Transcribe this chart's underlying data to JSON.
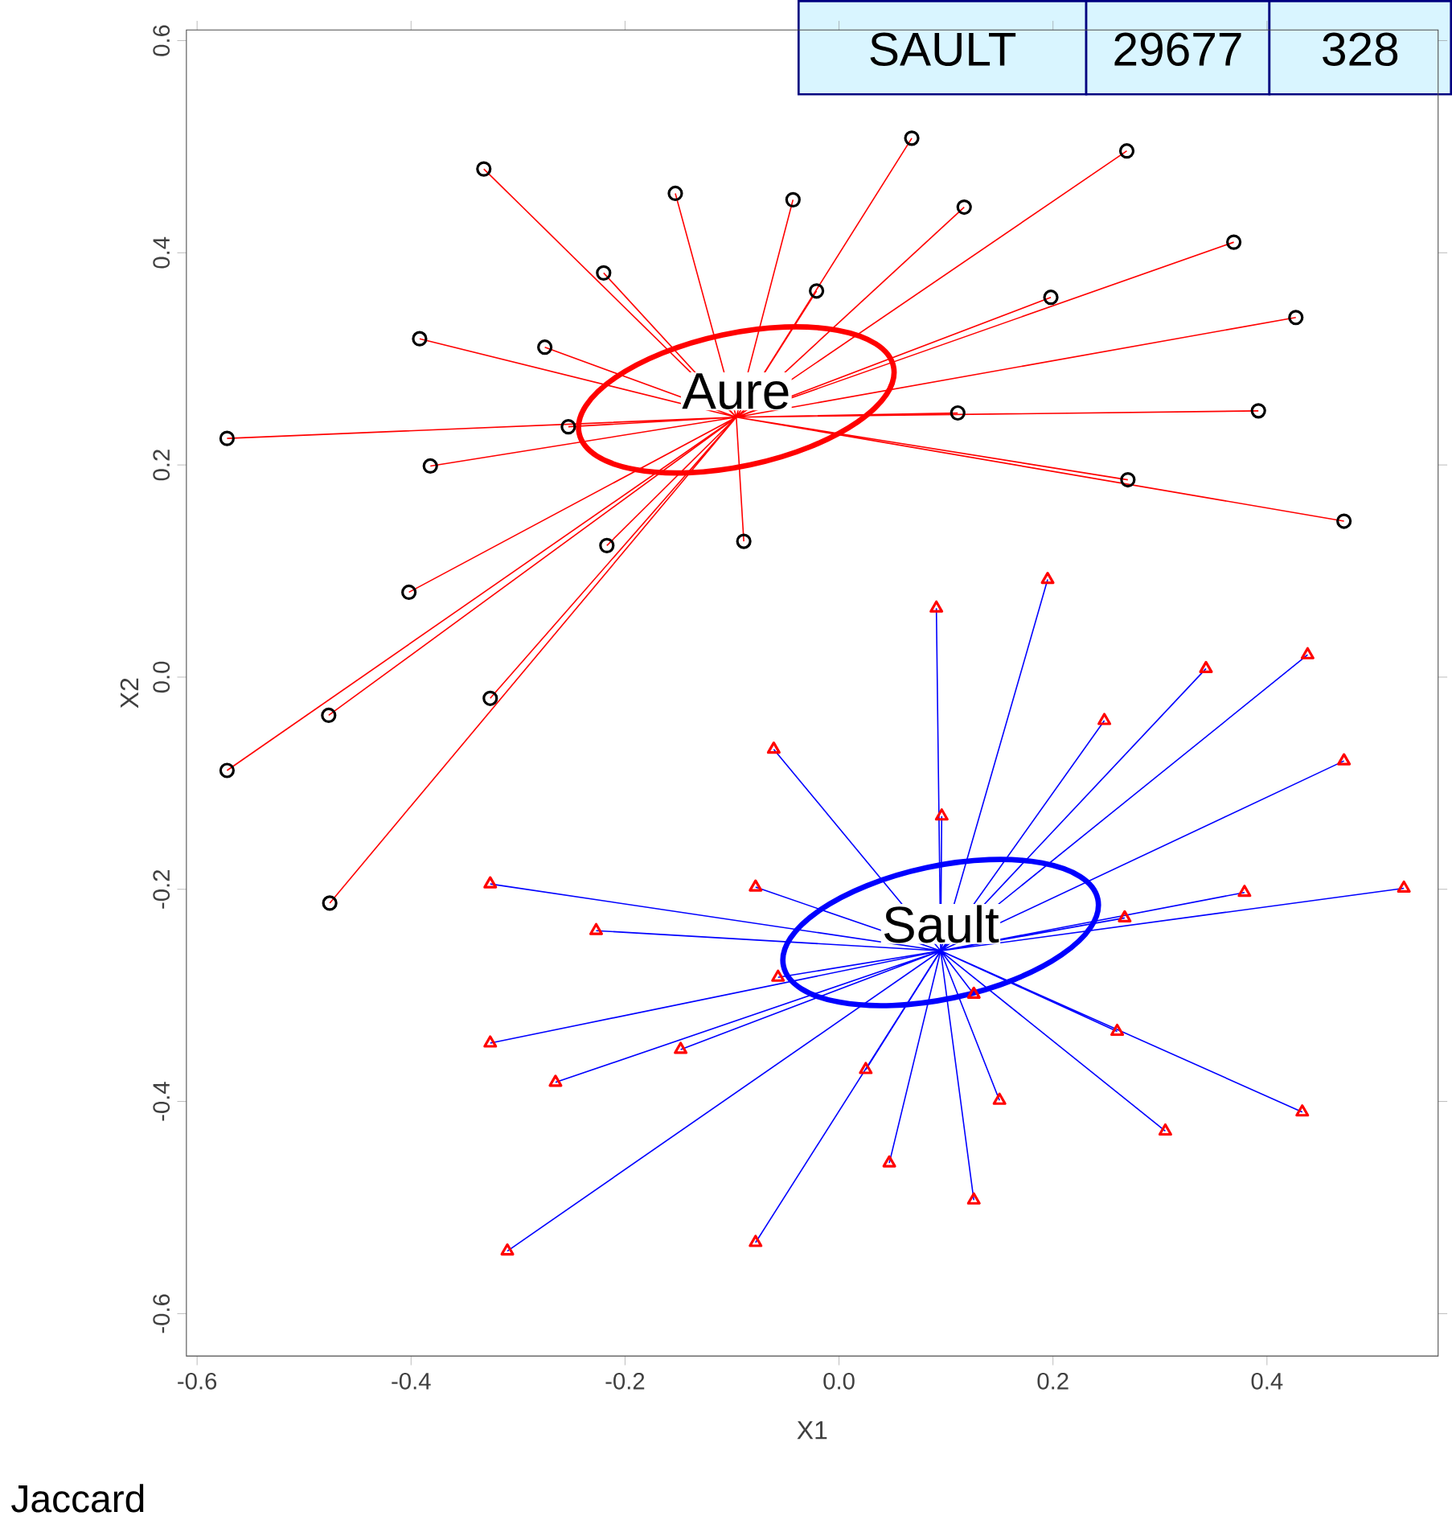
{
  "chart_data": {
    "type": "scatter",
    "xlabel": "X1",
    "ylabel": "X2",
    "xlim": [
      -0.61,
      0.56
    ],
    "ylim": [
      -0.64,
      0.61
    ],
    "xticks": [
      -0.6,
      -0.4,
      -0.2,
      {
        "value": 0,
        "label": "0.0"
      },
      0.2,
      0.4
    ],
    "yticks": [
      -0.6,
      -0.4,
      -0.2,
      {
        "value": 0,
        "label": "0.0"
      },
      0.2,
      0.4,
      0.6
    ],
    "grid": false,
    "series": [
      {
        "type": "line",
        "color": "#ff0000",
        "marker": "none",
        "x": [
          -0.096,
          -0.332,
          null,
          -0.096,
          -0.153,
          null,
          -0.096,
          -0.043,
          null,
          -0.096,
          0.068,
          null,
          -0.096,
          0.269,
          null,
          -0.096,
          0.117,
          null,
          -0.096,
          0.369,
          null,
          -0.096,
          0.198,
          null,
          -0.096,
          0.427,
          null,
          -0.096,
          -0.021,
          null,
          -0.096,
          -0.22,
          null,
          -0.096,
          -0.392,
          null,
          -0.096,
          -0.275,
          null,
          -0.096,
          -0.253,
          null,
          -0.096,
          -0.572,
          null,
          -0.096,
          -0.382,
          null,
          -0.096,
          0.111,
          null,
          -0.096,
          0.392,
          null,
          -0.096,
          0.27,
          null,
          -0.096,
          0.472,
          null,
          -0.096,
          -0.089,
          null,
          -0.096,
          -0.217,
          null,
          -0.096,
          -0.402,
          null,
          -0.096,
          -0.477,
          null,
          -0.096,
          -0.326,
          null,
          -0.096,
          -0.476
        ],
        "values": [
          0.245,
          0.479,
          null,
          0.245,
          0.456,
          null,
          0.245,
          0.45,
          null,
          0.245,
          0.508,
          null,
          0.245,
          0.496,
          null,
          0.245,
          0.443,
          null,
          0.245,
          0.41,
          null,
          0.245,
          0.358,
          null,
          0.245,
          0.339,
          null,
          0.245,
          0.364,
          null,
          0.245,
          0.381,
          null,
          0.245,
          0.319,
          null,
          0.245,
          0.311,
          null,
          0.245,
          0.236,
          null,
          0.245,
          0.225,
          null,
          0.245,
          0.199,
          null,
          0.245,
          0.249,
          null,
          0.245,
          0.251,
          null,
          0.245,
          0.186,
          null,
          0.245,
          0.147,
          null,
          0.245,
          0.128,
          null,
          0.245,
          0.124,
          null,
          0.245,
          0.08,
          null,
          0.245,
          -0.036,
          null,
          0.245,
          -0.02,
          null,
          0.245,
          -0.213
        ]
      },
      {
        "type": "line",
        "color": "#0000ff",
        "marker": "none",
        "x": [
          0.095,
          0.091,
          null,
          0.095,
          0.195,
          null,
          0.095,
          -0.061,
          null,
          0.095,
          0.096,
          null,
          0.095,
          0.248,
          null,
          0.095,
          0.343,
          null,
          0.095,
          0.438,
          null,
          0.095,
          0.472,
          null,
          0.095,
          -0.326,
          null,
          0.095,
          -0.078,
          null,
          0.095,
          -0.227,
          null,
          0.095,
          -0.057,
          null,
          0.095,
          0.267,
          null,
          0.095,
          0.379,
          null,
          0.095,
          0.528,
          null,
          0.095,
          0.126,
          null,
          0.095,
          -0.148,
          null,
          0.095,
          -0.265,
          null,
          0.095,
          0.025,
          null,
          0.095,
          0.26,
          null,
          0.095,
          0.15,
          null,
          0.095,
          0.305,
          null,
          0.095,
          0.433,
          null,
          0.095,
          0.047,
          null,
          0.095,
          -0.31
        ],
        "values": [
          -0.258,
          0.065,
          null,
          -0.258,
          0.092,
          null,
          -0.258,
          -0.068,
          null,
          -0.258,
          -0.131,
          null,
          -0.258,
          -0.041,
          null,
          -0.258,
          0.008,
          null,
          -0.258,
          0.021,
          null,
          -0.258,
          -0.079,
          null,
          -0.258,
          -0.195,
          null,
          -0.258,
          -0.198,
          null,
          -0.258,
          -0.239,
          null,
          -0.258,
          -0.283,
          null,
          -0.258,
          -0.227,
          null,
          -0.258,
          -0.203,
          null,
          -0.258,
          -0.199,
          null,
          -0.258,
          -0.299,
          null,
          -0.258,
          -0.351,
          null,
          -0.258,
          -0.382,
          null,
          -0.258,
          -0.37,
          null,
          -0.258,
          -0.334,
          null,
          -0.258,
          -0.399,
          null,
          -0.258,
          -0.428,
          null,
          -0.258,
          -0.41,
          null,
          -0.258,
          -0.458,
          null,
          -0.258,
          -0.541
        ]
      },
      {
        "type": "line",
        "color": "#ff0000",
        "marker": "none",
        "x": [
          -0.096,
          -0.572
        ],
        "values": [
          0.245,
          -0.088
        ]
      },
      {
        "type": "line",
        "color": "#0000ff",
        "marker": "none",
        "x": [
          0.095,
          -0.326,
          null,
          0.095,
          0.126,
          null,
          0.095,
          -0.078
        ],
        "values": [
          -0.258,
          -0.345,
          null,
          -0.258,
          -0.493,
          null,
          -0.258,
          -0.533
        ]
      },
      {
        "color": "#000000",
        "marker": "circle",
        "x": [
          -0.332,
          -0.153,
          -0.043,
          0.068,
          0.269,
          0.117,
          0.369,
          0.198,
          0.427,
          -0.021,
          -0.22,
          -0.392,
          -0.275,
          -0.253,
          -0.572,
          -0.382,
          0.111,
          0.392,
          0.27,
          0.472,
          -0.089,
          -0.217,
          -0.402,
          -0.477,
          -0.326,
          -0.572,
          -0.476
        ],
        "values": [
          0.479,
          0.456,
          0.45,
          0.508,
          0.496,
          0.443,
          0.41,
          0.358,
          0.339,
          0.364,
          0.381,
          0.319,
          0.311,
          0.236,
          0.225,
          0.199,
          0.249,
          0.251,
          0.186,
          0.147,
          0.128,
          0.124,
          0.08,
          -0.036,
          -0.02,
          -0.088,
          -0.213
        ]
      },
      {
        "color": "#ff0000",
        "marker": "triangle",
        "x": [
          0.091,
          0.195,
          -0.061,
          0.096,
          0.248,
          0.343,
          0.438,
          0.472,
          -0.326,
          -0.078,
          -0.227,
          -0.057,
          0.267,
          0.379,
          0.528,
          0.126,
          -0.326,
          -0.148,
          -0.265,
          0.025,
          0.26,
          0.15,
          0.305,
          0.433,
          0.047,
          0.126,
          -0.078,
          -0.31
        ],
        "values": [
          0.065,
          0.092,
          -0.068,
          -0.131,
          -0.041,
          0.008,
          0.021,
          -0.079,
          -0.195,
          -0.198,
          -0.239,
          -0.283,
          -0.227,
          -0.203,
          -0.199,
          -0.299,
          -0.345,
          -0.351,
          -0.382,
          -0.37,
          -0.334,
          -0.399,
          -0.428,
          -0.41,
          -0.458,
          -0.493,
          -0.533,
          -0.541
        ]
      }
    ],
    "annotations": [
      {
        "text": "Aure",
        "x": -0.096,
        "y": 0.245
      },
      {
        "text": "Sault",
        "x": 0.095,
        "y": -0.258
      },
      "SAULT",
      "29677",
      "328",
      "Jaccard"
    ]
  }
}
